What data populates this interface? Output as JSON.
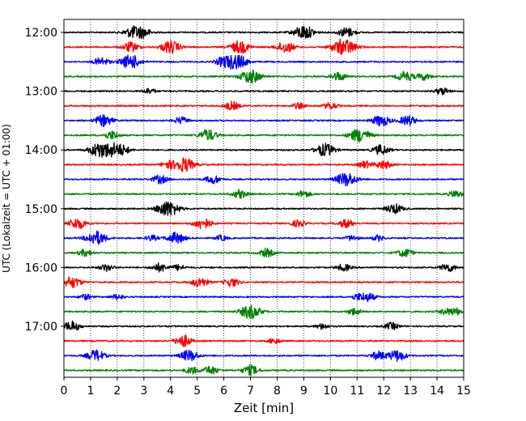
{
  "chart_data": {
    "type": "line",
    "title": "",
    "xlabel": "Zeit  [min]",
    "ylabel": "UTC (Lokalzeit = UTC + 01:00)",
    "xlim": [
      0,
      15
    ],
    "x_ticks": [
      "0",
      "1",
      "2",
      "3",
      "4",
      "5",
      "6",
      "7",
      "8",
      "9",
      "10",
      "11",
      "12",
      "13",
      "14",
      "15"
    ],
    "y_tick_labels": [
      "12:00",
      "13:00",
      "14:00",
      "15:00",
      "16:00",
      "17:00"
    ],
    "grid": "vertical dotted lines at each minute",
    "trace_interval_minutes": 15,
    "trace_start": "12:00",
    "trace_count": 24,
    "trace_colors": [
      "#000000",
      "#ff0000",
      "#0000ff",
      "#008000"
    ],
    "events": [
      [
        [
          2.6,
          0.8
        ],
        [
          3.0,
          0.6
        ],
        [
          9.0,
          1.0
        ],
        [
          10.6,
          0.7
        ]
      ],
      [
        [
          2.5,
          0.7
        ],
        [
          4.0,
          0.9
        ],
        [
          6.6,
          0.9
        ],
        [
          8.3,
          0.8
        ],
        [
          10.5,
          1.2
        ]
      ],
      [
        [
          1.4,
          0.6
        ],
        [
          2.5,
          1.0
        ],
        [
          6.5,
          1.0
        ],
        [
          6.0,
          0.7
        ]
      ],
      [
        [
          7.0,
          1.0
        ],
        [
          10.3,
          0.6
        ],
        [
          12.8,
          0.7
        ],
        [
          13.5,
          0.5
        ]
      ],
      [
        [
          14.2,
          0.5
        ],
        [
          3.2,
          0.4
        ]
      ],
      [
        [
          6.3,
          0.6
        ],
        [
          8.8,
          0.4
        ],
        [
          10.0,
          0.5
        ]
      ],
      [
        [
          1.5,
          0.8
        ],
        [
          4.4,
          0.5
        ],
        [
          11.9,
          0.8
        ],
        [
          12.9,
          0.7
        ]
      ],
      [
        [
          1.8,
          0.6
        ],
        [
          5.4,
          0.8
        ],
        [
          11.1,
          1.0
        ]
      ],
      [
        [
          1.3,
          0.9
        ],
        [
          1.7,
          1.0
        ],
        [
          2.2,
          0.6
        ],
        [
          9.8,
          0.9
        ],
        [
          11.9,
          0.7
        ]
      ],
      [
        [
          4.5,
          1.0
        ],
        [
          3.9,
          0.5
        ],
        [
          12.0,
          0.6
        ],
        [
          11.3,
          0.5
        ]
      ],
      [
        [
          3.6,
          0.6
        ],
        [
          5.6,
          0.6
        ],
        [
          10.6,
          1.0
        ]
      ],
      [
        [
          6.6,
          0.6
        ],
        [
          9.0,
          0.5
        ],
        [
          14.7,
          0.5
        ]
      ],
      [
        [
          4.0,
          0.9
        ],
        [
          3.7,
          0.6
        ],
        [
          12.4,
          0.7
        ]
      ],
      [
        [
          0.5,
          0.8
        ],
        [
          5.2,
          0.8
        ],
        [
          8.8,
          0.5
        ],
        [
          10.6,
          0.6
        ]
      ],
      [
        [
          1.2,
          1.0
        ],
        [
          4.2,
          0.8
        ],
        [
          3.3,
          0.4
        ],
        [
          5.9,
          0.4
        ],
        [
          10.8,
          0.4
        ],
        [
          11.8,
          0.4
        ]
      ],
      [
        [
          0.8,
          0.5
        ],
        [
          7.6,
          0.6
        ],
        [
          12.8,
          0.6
        ]
      ],
      [
        [
          1.6,
          0.5
        ],
        [
          3.6,
          0.6
        ],
        [
          4.3,
          0.4
        ],
        [
          10.5,
          0.5
        ],
        [
          14.4,
          0.6
        ]
      ],
      [
        [
          0.3,
          0.8
        ],
        [
          5.1,
          0.7
        ],
        [
          6.3,
          0.6
        ]
      ],
      [
        [
          0.8,
          0.4
        ],
        [
          2.0,
          0.4
        ],
        [
          11.4,
          0.6
        ],
        [
          11.0,
          0.4
        ]
      ],
      [
        [
          7.0,
          1.0
        ],
        [
          10.9,
          0.5
        ],
        [
          14.7,
          0.5
        ],
        [
          14.3,
          0.4
        ]
      ],
      [
        [
          0.3,
          0.7
        ],
        [
          12.3,
          0.5
        ],
        [
          9.7,
          0.4
        ]
      ],
      [
        [
          4.4,
          0.6
        ],
        [
          4.6,
          0.4
        ],
        [
          7.9,
          0.4
        ]
      ],
      [
        [
          1.2,
          0.8
        ],
        [
          4.7,
          0.8
        ],
        [
          11.8,
          0.6
        ],
        [
          12.5,
          0.8
        ]
      ],
      [
        [
          5.5,
          0.6
        ],
        [
          7.0,
          0.7
        ],
        [
          4.8,
          0.5
        ]
      ]
    ]
  }
}
